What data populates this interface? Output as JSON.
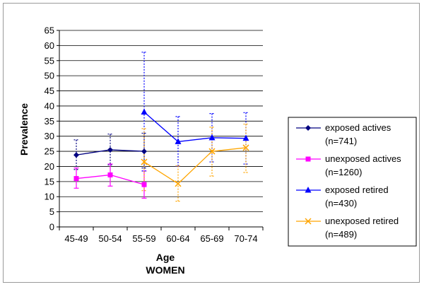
{
  "chart_data": {
    "type": "line",
    "categories": [
      "45-49",
      "50-54",
      "55-59",
      "60-64",
      "65-69",
      "70-74"
    ],
    "xlabel": "Age",
    "xsublabel": "WOMEN",
    "ylabel": "Prevalence",
    "ylim": [
      0,
      65
    ],
    "yticks": [
      "0",
      "5",
      "10",
      "15",
      "20",
      "25",
      "30",
      "35",
      "40",
      "45",
      "50",
      "55",
      "60",
      "65"
    ],
    "grid": "horizontal",
    "legend_position": "right",
    "series": [
      {
        "name": "exposed actives",
        "n_label": "(n=741)",
        "color": "#000080",
        "marker": "diamond",
        "error_style": "dotted",
        "values": [
          23.8,
          25.5,
          25.0,
          null,
          null,
          null
        ],
        "lower": [
          19.0,
          20.5,
          19.5,
          null,
          null,
          null
        ],
        "upper": [
          28.8,
          30.7,
          31.0,
          null,
          null,
          null
        ]
      },
      {
        "name": "unexposed actives",
        "n_label": "(n=1260)",
        "color": "#ff00ff",
        "marker": "square",
        "error_style": "solid",
        "values": [
          16.0,
          17.2,
          14.0,
          null,
          null,
          null
        ],
        "lower": [
          12.8,
          13.5,
          9.5,
          null,
          null,
          null
        ],
        "upper": [
          19.5,
          20.8,
          18.5,
          null,
          null,
          null
        ]
      },
      {
        "name": "exposed retired",
        "n_label": "(n=430)",
        "color": "#0000ff",
        "marker": "triangle",
        "error_style": "dotted",
        "values": [
          null,
          null,
          38.0,
          28.2,
          29.5,
          29.3
        ],
        "lower": [
          null,
          null,
          18.5,
          20.0,
          21.5,
          20.8
        ],
        "upper": [
          null,
          null,
          57.8,
          36.5,
          37.5,
          37.8
        ]
      },
      {
        "name": "unexposed retired",
        "n_label": "(n=489)",
        "color": "#ffa500",
        "marker": "x",
        "error_style": "dotted",
        "values": [
          null,
          null,
          21.5,
          14.3,
          25.0,
          26.2
        ],
        "lower": [
          null,
          null,
          12.0,
          8.5,
          16.8,
          18.0
        ],
        "upper": [
          null,
          null,
          32.5,
          20.2,
          33.0,
          34.0
        ]
      }
    ]
  }
}
